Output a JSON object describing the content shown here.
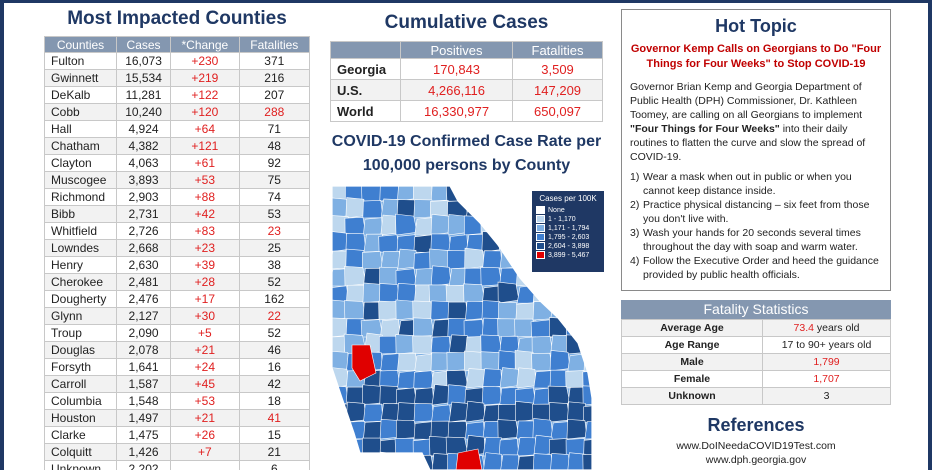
{
  "counties": {
    "title": "Most Impacted Counties",
    "headers": [
      "Counties",
      "Cases",
      "*Change",
      "Fatalities"
    ],
    "rows": [
      {
        "name": "Fulton",
        "cases": "16,073",
        "change": "+230",
        "fatal": "371",
        "fatal_red": false
      },
      {
        "name": "Gwinnett",
        "cases": "15,534",
        "change": "+219",
        "fatal": "216",
        "fatal_red": false
      },
      {
        "name": "DeKalb",
        "cases": "11,281",
        "change": "+122",
        "fatal": "207",
        "fatal_red": false
      },
      {
        "name": "Cobb",
        "cases": "10,240",
        "change": "+120",
        "fatal": "288",
        "fatal_red": true
      },
      {
        "name": "Hall",
        "cases": "4,924",
        "change": "+64",
        "fatal": "71",
        "fatal_red": false
      },
      {
        "name": "Chatham",
        "cases": "4,382",
        "change": "+121",
        "fatal": "48",
        "fatal_red": false
      },
      {
        "name": "Clayton",
        "cases": "4,063",
        "change": "+61",
        "fatal": "92",
        "fatal_red": false
      },
      {
        "name": "Muscogee",
        "cases": "3,893",
        "change": "+53",
        "fatal": "75",
        "fatal_red": false
      },
      {
        "name": "Richmond",
        "cases": "2,903",
        "change": "+88",
        "fatal": "74",
        "fatal_red": false
      },
      {
        "name": "Bibb",
        "cases": "2,731",
        "change": "+42",
        "fatal": "53",
        "fatal_red": false
      },
      {
        "name": "Whitfield",
        "cases": "2,726",
        "change": "+83",
        "fatal": "23",
        "fatal_red": true
      },
      {
        "name": "Lowndes",
        "cases": "2,668",
        "change": "+23",
        "fatal": "25",
        "fatal_red": false
      },
      {
        "name": "Henry",
        "cases": "2,630",
        "change": "+39",
        "fatal": "38",
        "fatal_red": false
      },
      {
        "name": "Cherokee",
        "cases": "2,481",
        "change": "+28",
        "fatal": "52",
        "fatal_red": false
      },
      {
        "name": "Dougherty",
        "cases": "2,476",
        "change": "+17",
        "fatal": "162",
        "fatal_red": false
      },
      {
        "name": "Glynn",
        "cases": "2,127",
        "change": "+30",
        "fatal": "22",
        "fatal_red": true
      },
      {
        "name": "Troup",
        "cases": "2,090",
        "change": "+5",
        "fatal": "52",
        "fatal_red": false
      },
      {
        "name": "Douglas",
        "cases": "2,078",
        "change": "+21",
        "fatal": "46",
        "fatal_red": false
      },
      {
        "name": "Forsyth",
        "cases": "1,641",
        "change": "+24",
        "fatal": "16",
        "fatal_red": false
      },
      {
        "name": "Carroll",
        "cases": "1,587",
        "change": "+45",
        "fatal": "42",
        "fatal_red": false
      },
      {
        "name": "Columbia",
        "cases": "1,548",
        "change": "+53",
        "fatal": "18",
        "fatal_red": false
      },
      {
        "name": "Houston",
        "cases": "1,497",
        "change": "+21",
        "fatal": "41",
        "fatal_red": true
      },
      {
        "name": "Clarke",
        "cases": "1,475",
        "change": "+26",
        "fatal": "15",
        "fatal_red": false
      },
      {
        "name": "Colquitt",
        "cases": "1,426",
        "change": "+7",
        "fatal": "21",
        "fatal_red": false
      },
      {
        "name": "Unknown",
        "cases": "2,202",
        "change": "",
        "fatal": "6",
        "fatal_red": false
      }
    ]
  },
  "cumulative": {
    "title": "Cumulative Cases",
    "headers": [
      "",
      "Positives",
      "Fatalities"
    ],
    "rows": [
      {
        "label": "Georgia",
        "positives": "170,843",
        "fatalities": "3,509"
      },
      {
        "label": "U.S.",
        "positives": "4,266,116",
        "fatalities": "147,209"
      },
      {
        "label": "World",
        "positives": "16,330,977",
        "fatalities": "650,097"
      }
    ]
  },
  "map": {
    "title_line1": "COVID-19 Confirmed Case Rate per",
    "title_line2": "100,000 persons by County",
    "legend_title": "Cases per 100K",
    "legend": [
      {
        "label": "None",
        "color": "#ffffff"
      },
      {
        "label": "1 - 1,170",
        "color": "#bdd7ee"
      },
      {
        "label": "1,171 - 1,794",
        "color": "#7fb0e3"
      },
      {
        "label": "1,795 - 2,603",
        "color": "#3f7fd0"
      },
      {
        "label": "2,604 - 3,898",
        "color": "#1f4e8c"
      },
      {
        "label": "3,899 - 5,467",
        "color": "#e00000"
      }
    ]
  },
  "hot_topic": {
    "title": "Hot Topic",
    "headline": "Governor Kemp Calls on Georgians to Do \"Four Things for Four Weeks\" to Stop COVID-19",
    "body_pre": "Governor Brian Kemp and Georgia Department of Public Health (DPH) Commissioner, Dr. Kathleen Toomey, are calling on all Georgians to implement ",
    "body_bold": "\"Four Things for Four Weeks\"",
    "body_post": " into their daily routines to flatten the curve and slow the spread of COVID-19.",
    "items": [
      {
        "n": "1)",
        "text": "Wear a mask when out in public or when you cannot keep distance inside."
      },
      {
        "n": "2)",
        "text": "Practice physical distancing – six feet from those you don't live with."
      },
      {
        "n": "3)",
        "text": "Wash your hands for 20 seconds several times throughout the day with soap and warm water."
      },
      {
        "n": "4)",
        "text": "Follow the Executive Order and heed the guidance provided by public health officials."
      }
    ]
  },
  "fatality": {
    "title": "Fatality Statistics",
    "avg_age_label": "Average Age",
    "avg_age_num": "73.4",
    "avg_age_unit": " years old",
    "age_range_label": "Age Range",
    "age_range_value": "17 to 90+ years old",
    "male_label": "Male",
    "male_value": "1,799",
    "female_label": "Female",
    "female_value": "1,707",
    "unknown_label": "Unknown",
    "unknown_value": "3"
  },
  "references": {
    "title": "References",
    "links": [
      "www.DoINeedaCOVID19Test.com",
      "www.dph.georgia.gov"
    ]
  },
  "colors": {
    "navy": "#1f3864",
    "header_blue": "#8497b0",
    "red": "#e02020"
  }
}
